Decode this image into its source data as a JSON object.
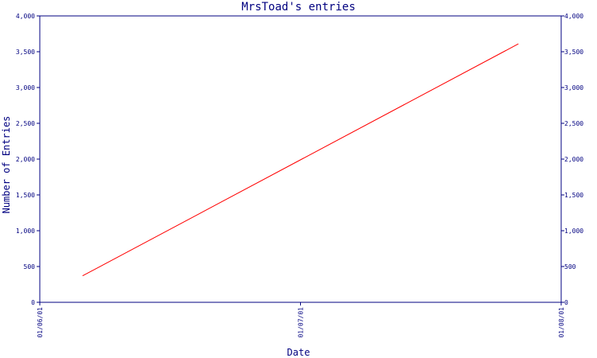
{
  "chart_data": {
    "type": "line",
    "title": "MrsToad's entries",
    "xlabel": "Date",
    "ylabel": "Number of Entries",
    "x_ticks": [
      "01/06/01",
      "01/07/01",
      "01/08/01"
    ],
    "y_ticks": [
      "0",
      "500",
      "1,000",
      "1,500",
      "2,000",
      "2,500",
      "3,000",
      "3,500",
      "4,000"
    ],
    "ylim": [
      0,
      4000
    ],
    "xlim": [
      "2001-06-01",
      "2001-08-01"
    ],
    "grid": false,
    "legend": "none",
    "series": [
      {
        "color": "#ff0000",
        "points": [
          {
            "x": "2001-06-06",
            "y": 370
          },
          {
            "x": "2001-07-27",
            "y": 3610
          }
        ]
      }
    ]
  },
  "colors": {
    "axis": "#000080",
    "line": "#ff0000",
    "background": "#ffffff"
  }
}
